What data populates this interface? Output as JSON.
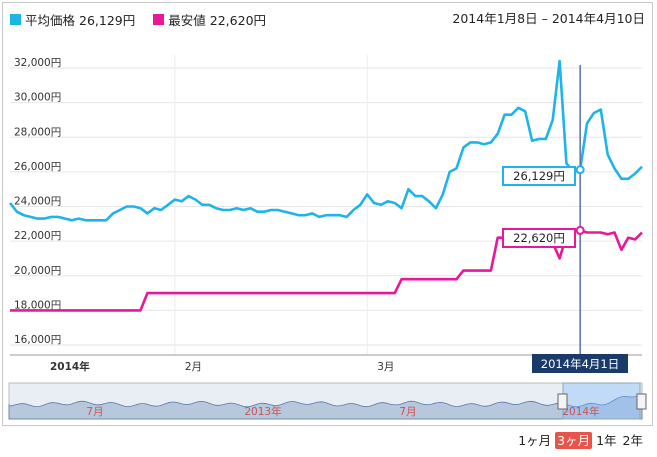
{
  "legend": {
    "avg_label": "平均価格",
    "avg_value": "26,129円",
    "min_label": "最安値",
    "min_value": "22,620円",
    "avg_color": "#1eb4e8",
    "min_color": "#e8189a"
  },
  "date_range": "2014年1月8日 – 2014年4月10日",
  "tooltip": {
    "date": "2014年4月1日",
    "avg": "26,129円",
    "min": "22,620円"
  },
  "navigator": {
    "labels": [
      "7月",
      "2013年",
      "7月",
      "2014年"
    ]
  },
  "periods": [
    {
      "label": "1ヶ月",
      "active": false
    },
    {
      "label": "3ヶ月",
      "active": true
    },
    {
      "label": "1年",
      "active": false
    },
    {
      "label": "2年",
      "active": false
    }
  ],
  "chart_data": {
    "type": "line",
    "x_range": [
      "2014-01-08",
      "2014-04-10"
    ],
    "ylim": [
      16000,
      32000
    ],
    "ytick_labels": [
      "16,000円",
      "18,000円",
      "20,000円",
      "22,000円",
      "24,000円",
      "26,000円",
      "28,000円",
      "30,000円",
      "32,000円"
    ],
    "xtick_labels": [
      "2014年",
      "2月",
      "3月"
    ],
    "grid": true,
    "series": [
      {
        "name": "平均価格",
        "color": "#1eb4e8",
        "points": [
          [
            "2014-01-08",
            24200
          ],
          [
            "2014-01-09",
            23700
          ],
          [
            "2014-01-10",
            23500
          ],
          [
            "2014-01-11",
            23400
          ],
          [
            "2014-01-12",
            23300
          ],
          [
            "2014-01-13",
            23300
          ],
          [
            "2014-01-14",
            23400
          ],
          [
            "2014-01-15",
            23400
          ],
          [
            "2014-01-16",
            23300
          ],
          [
            "2014-01-17",
            23200
          ],
          [
            "2014-01-18",
            23300
          ],
          [
            "2014-01-19",
            23200
          ],
          [
            "2014-01-20",
            23200
          ],
          [
            "2014-01-21",
            23200
          ],
          [
            "2014-01-22",
            23200
          ],
          [
            "2014-01-23",
            23600
          ],
          [
            "2014-01-24",
            23800
          ],
          [
            "2014-01-25",
            24000
          ],
          [
            "2014-01-26",
            24000
          ],
          [
            "2014-01-27",
            23900
          ],
          [
            "2014-01-28",
            23600
          ],
          [
            "2014-01-29",
            23900
          ],
          [
            "2014-01-30",
            23800
          ],
          [
            "2014-01-31",
            24100
          ],
          [
            "2014-02-01",
            24400
          ],
          [
            "2014-02-02",
            24300
          ],
          [
            "2014-02-03",
            24600
          ],
          [
            "2014-02-04",
            24400
          ],
          [
            "2014-02-05",
            24100
          ],
          [
            "2014-02-06",
            24100
          ],
          [
            "2014-02-07",
            23900
          ],
          [
            "2014-02-08",
            23800
          ],
          [
            "2014-02-09",
            23800
          ],
          [
            "2014-02-10",
            23900
          ],
          [
            "2014-02-11",
            23800
          ],
          [
            "2014-02-12",
            23900
          ],
          [
            "2014-02-13",
            23700
          ],
          [
            "2014-02-14",
            23700
          ],
          [
            "2014-02-15",
            23800
          ],
          [
            "2014-02-16",
            23800
          ],
          [
            "2014-02-17",
            23700
          ],
          [
            "2014-02-18",
            23600
          ],
          [
            "2014-02-19",
            23500
          ],
          [
            "2014-02-20",
            23500
          ],
          [
            "2014-02-21",
            23600
          ],
          [
            "2014-02-22",
            23400
          ],
          [
            "2014-02-23",
            23500
          ],
          [
            "2014-02-24",
            23500
          ],
          [
            "2014-02-25",
            23500
          ],
          [
            "2014-02-26",
            23400
          ],
          [
            "2014-02-27",
            23800
          ],
          [
            "2014-02-28",
            24100
          ],
          [
            "2014-03-01",
            24700
          ],
          [
            "2014-03-02",
            24200
          ],
          [
            "2014-03-03",
            24100
          ],
          [
            "2014-03-04",
            24300
          ],
          [
            "2014-03-05",
            24200
          ],
          [
            "2014-03-06",
            23900
          ],
          [
            "2014-03-07",
            25000
          ],
          [
            "2014-03-08",
            24600
          ],
          [
            "2014-03-09",
            24600
          ],
          [
            "2014-03-10",
            24300
          ],
          [
            "2014-03-11",
            23900
          ],
          [
            "2014-03-12",
            24700
          ],
          [
            "2014-03-13",
            26000
          ],
          [
            "2014-03-14",
            26200
          ],
          [
            "2014-03-15",
            27400
          ],
          [
            "2014-03-16",
            27700
          ],
          [
            "2014-03-17",
            27700
          ],
          [
            "2014-03-18",
            27600
          ],
          [
            "2014-03-19",
            27700
          ],
          [
            "2014-03-20",
            28200
          ],
          [
            "2014-03-21",
            29300
          ],
          [
            "2014-03-22",
            29300
          ],
          [
            "2014-03-23",
            29700
          ],
          [
            "2014-03-24",
            29500
          ],
          [
            "2014-03-25",
            27800
          ],
          [
            "2014-03-26",
            27900
          ],
          [
            "2014-03-27",
            27900
          ],
          [
            "2014-03-28",
            29000
          ],
          [
            "2014-03-29",
            32400
          ],
          [
            "2014-03-30",
            26500
          ],
          [
            "2014-03-31",
            26000
          ],
          [
            "2014-04-01",
            26129
          ],
          [
            "2014-04-02",
            28800
          ],
          [
            "2014-04-03",
            29400
          ],
          [
            "2014-04-04",
            29600
          ],
          [
            "2014-04-05",
            27000
          ],
          [
            "2014-04-06",
            26200
          ],
          [
            "2014-04-07",
            25600
          ],
          [
            "2014-04-08",
            25600
          ],
          [
            "2014-04-09",
            25900
          ],
          [
            "2014-04-10",
            26300
          ]
        ]
      },
      {
        "name": "最安値",
        "color": "#e8189a",
        "points": [
          [
            "2014-01-08",
            18000
          ],
          [
            "2014-01-27",
            18000
          ],
          [
            "2014-01-28",
            19000
          ],
          [
            "2014-03-05",
            19000
          ],
          [
            "2014-03-06",
            19800
          ],
          [
            "2014-03-14",
            19800
          ],
          [
            "2014-03-15",
            20300
          ],
          [
            "2014-03-19",
            20300
          ],
          [
            "2014-03-20",
            22200
          ],
          [
            "2014-03-27",
            22200
          ],
          [
            "2014-03-28",
            21900
          ],
          [
            "2014-03-29",
            21000
          ],
          [
            "2014-03-30",
            22300
          ],
          [
            "2014-03-31",
            22600
          ],
          [
            "2014-04-01",
            22620
          ],
          [
            "2014-04-02",
            22500
          ],
          [
            "2014-04-04",
            22500
          ],
          [
            "2014-04-05",
            22400
          ],
          [
            "2014-04-06",
            22500
          ],
          [
            "2014-04-07",
            21500
          ],
          [
            "2014-04-08",
            22200
          ],
          [
            "2014-04-09",
            22100
          ],
          [
            "2014-04-10",
            22500
          ]
        ]
      }
    ]
  }
}
